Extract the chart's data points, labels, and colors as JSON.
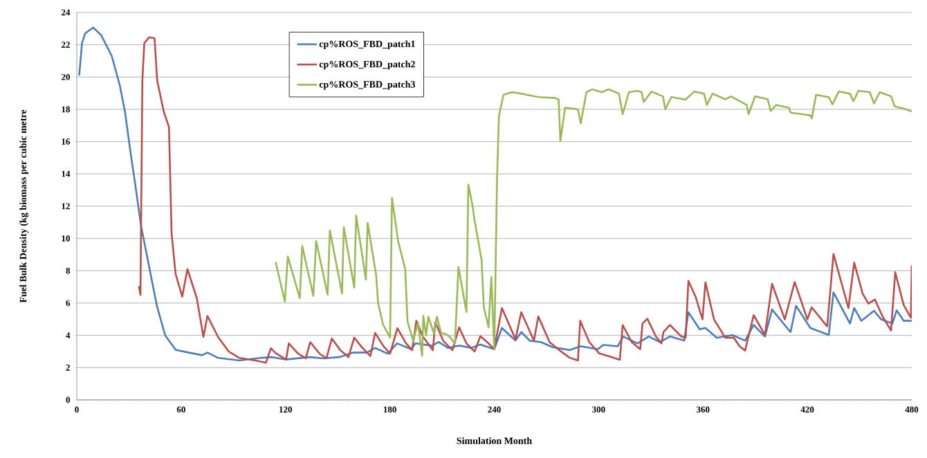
{
  "chart_data": {
    "type": "line",
    "xlabel": "Simulation Month",
    "ylabel": "Fuel Bulk Density (kg biomass per cubic metre",
    "xlim": [
      0,
      480
    ],
    "xticks": [
      0,
      60,
      120,
      180,
      240,
      300,
      360,
      420,
      480
    ],
    "ylim": [
      0,
      24
    ],
    "yticks": [
      0,
      2,
      4,
      6,
      8,
      10,
      12,
      14,
      16,
      18,
      20,
      22,
      24
    ],
    "grid": "y",
    "legend": "top",
    "marker": "none",
    "line_style": "solid",
    "series": [
      {
        "name": "cp%ROS_FBD_patch1",
        "color": "#4a7ebb",
        "x": [
          1.4,
          3,
          4.8,
          9.4,
          14,
          20.1,
          24.7,
          27.7,
          30.8,
          33.8,
          36.9,
          41.5,
          46.1,
          50.8,
          56.9,
          64.4,
          72,
          75.1,
          81.2,
          93.4,
          105.7,
          112.3,
          120.3,
          133.6,
          141.6,
          150.9,
          158.8,
          166.8,
          171.5,
          178.8,
          184.1,
          192.1,
          194.8,
          204.1,
          208.1,
          213.4,
          220,
          226.7,
          232,
          240,
          244.4,
          252.2,
          255.5,
          260.4,
          266.9,
          273.4,
          283.2,
          289.7,
          299.5,
          302.7,
          310.9,
          314.1,
          322.3,
          328.8,
          335.3,
          341,
          349.2,
          351.6,
          358.1,
          361.4,
          367.9,
          376.9,
          384.2,
          389.1,
          395.6,
          399.7,
          410.3,
          413.5,
          421.7,
          432.3,
          435,
          444.5,
          446.9,
          451,
          458.3,
          462.4,
          468.9,
          471.3,
          475.4,
          480
        ],
        "values": [
          20.1,
          22.1,
          22.7,
          23.07,
          22.6,
          21.3,
          19.5,
          17.85,
          15.4,
          13.2,
          10.8,
          8.3,
          5.8,
          4.0,
          3.1,
          2.93,
          2.77,
          2.93,
          2.6,
          2.44,
          2.6,
          2.65,
          2.5,
          2.65,
          2.57,
          2.65,
          2.93,
          2.93,
          3.22,
          2.86,
          3.5,
          3.15,
          3.5,
          3.36,
          3.58,
          3.22,
          3.36,
          3.22,
          3.43,
          3.14,
          4.46,
          3.67,
          4.2,
          3.67,
          3.58,
          3.27,
          3.09,
          3.32,
          3.14,
          3.41,
          3.32,
          3.93,
          3.5,
          3.93,
          3.58,
          3.93,
          3.67,
          5.43,
          4.37,
          4.46,
          3.85,
          4.02,
          3.67,
          4.64,
          3.93,
          5.6,
          4.2,
          5.83,
          4.46,
          4.02,
          6.66,
          4.73,
          5.69,
          4.9,
          5.52,
          4.99,
          4.73,
          5.55,
          4.9,
          4.9
        ]
      },
      {
        "name": "cp%ROS_FBD_patch2",
        "color": "#be4b48",
        "x": [
          35.7,
          36.6,
          37.7,
          38.8,
          41.6,
          44.7,
          46.2,
          50,
          53,
          54.5,
          56.8,
          60.6,
          63.6,
          69,
          72.8,
          75.1,
          81.2,
          87.3,
          93.4,
          102.6,
          108.7,
          111.6,
          114.3,
          120.3,
          121.9,
          126.9,
          131.6,
          134.2,
          139.6,
          143.5,
          146.6,
          151.5,
          156.2,
          159.5,
          164.2,
          168.8,
          171.5,
          176.1,
          180.1,
          184.3,
          189.3,
          192.8,
          195.2,
          198.8,
          204.7,
          206.1,
          210.7,
          216,
          219.8,
          224,
          228.7,
          232,
          236.7,
          240,
          244.4,
          252.2,
          255.5,
          262.8,
          265.3,
          271.8,
          276.7,
          283.2,
          288.1,
          289.4,
          294.6,
          300.3,
          306,
          312.2,
          313.8,
          319,
          323.9,
          325.2,
          328,
          332.9,
          336.1,
          337.3,
          341,
          347.5,
          350,
          351.6,
          355.7,
          359.7,
          361.4,
          366.3,
          372.8,
          377.7,
          381,
          384.2,
          389.1,
          395.6,
          399.7,
          407,
          412.7,
          420,
          422.5,
          431.4,
          435,
          443.6,
          446.9,
          451.8,
          455.1,
          458.8,
          463.2,
          468.1,
          470.5,
          475.4,
          479.5,
          480
        ],
        "values": [
          7.05,
          6.5,
          19.8,
          22.1,
          22.46,
          22.4,
          19.8,
          17.85,
          16.9,
          10.3,
          7.8,
          6.4,
          8.1,
          6.3,
          3.9,
          5.2,
          3.9,
          3.0,
          2.6,
          2.44,
          2.3,
          3.2,
          2.9,
          2.5,
          3.5,
          2.9,
          2.57,
          3.58,
          2.86,
          2.57,
          3.8,
          3.08,
          2.65,
          3.86,
          3.22,
          2.72,
          4.15,
          3.36,
          2.86,
          4.44,
          3.5,
          3.08,
          4.9,
          3.94,
          3.08,
          4.8,
          3.65,
          3.08,
          4.5,
          3.5,
          3.0,
          3.94,
          3.5,
          3.14,
          5.69,
          3.76,
          5.43,
          3.67,
          5.17,
          3.58,
          3.14,
          2.62,
          2.44,
          4.9,
          3.58,
          2.88,
          2.7,
          2.49,
          4.64,
          3.58,
          3.14,
          4.73,
          5.03,
          3.93,
          3.5,
          4.2,
          4.64,
          3.93,
          3.85,
          7.37,
          6.4,
          4.99,
          7.28,
          4.99,
          3.85,
          3.85,
          3.32,
          3.06,
          5.25,
          4.02,
          7.19,
          4.99,
          7.3,
          4.99,
          5.73,
          4.55,
          9.04,
          5.69,
          8.5,
          6.57,
          5.96,
          6.22,
          5.17,
          4.29,
          7.9,
          5.87,
          5.08,
          8.33
        ]
      },
      {
        "name": "cp%ROS_FBD_patch3",
        "color": "#98b954",
        "x": [
          114.3,
          119.6,
          121.3,
          128.2,
          129.6,
          136,
          137.6,
          144.2,
          145.5,
          152.5,
          153.5,
          159.5,
          160.6,
          166.2,
          167.2,
          172.1,
          173.2,
          176.1,
          180.1,
          181.2,
          184.8,
          188.8,
          190.1,
          193.4,
          196.1,
          198.5,
          199.2,
          200.8,
          202.1,
          205.4,
          207,
          209.4,
          212.1,
          214.1,
          217.4,
          219.4,
          224,
          225.1,
          227.4,
          228.7,
          232.7,
          234,
          236.7,
          238.3,
          240,
          241.6,
          242.7,
          245.3,
          250,
          255.5,
          265.3,
          275,
          277,
          278,
          280.7,
          288.1,
          289.7,
          293,
          296.2,
          301.9,
          305.7,
          311.7,
          313.8,
          317.4,
          322.3,
          324.7,
          325.9,
          330.4,
          337,
          338.3,
          341.8,
          350,
          354.9,
          360.6,
          362.2,
          365.5,
          372.8,
          376.1,
          385.1,
          386.2,
          389.9,
          397.2,
          398.9,
          402.1,
          409.4,
          410.3,
          416.8,
          421.7,
          422.5,
          425,
          432.3,
          434.4,
          438,
          444.5,
          446.4,
          449.4,
          455.9,
          458.3,
          461.6,
          468.1,
          470.2,
          475.4,
          480
        ],
        "values": [
          8.55,
          6.09,
          8.88,
          6.3,
          9.53,
          6.44,
          9.84,
          6.52,
          10.5,
          6.59,
          10.7,
          6.95,
          11.42,
          7.45,
          10.96,
          7.73,
          6.0,
          4.65,
          3.86,
          12.5,
          9.8,
          8.1,
          4.87,
          3.65,
          4.8,
          2.72,
          5.2,
          4.0,
          5.15,
          4.08,
          5.15,
          4.15,
          4.08,
          3.94,
          3.5,
          8.24,
          5.44,
          13.33,
          12.1,
          11.1,
          8.67,
          5.73,
          4.5,
          7.6,
          3.15,
          13.8,
          17.6,
          18.9,
          19.06,
          18.97,
          18.76,
          18.7,
          18.6,
          16.04,
          18.1,
          18.0,
          17.13,
          19.06,
          19.24,
          19.06,
          19.24,
          18.97,
          17.7,
          19.06,
          19.15,
          19.06,
          18.45,
          19.1,
          18.8,
          18.0,
          18.76,
          18.6,
          19.1,
          18.97,
          18.27,
          18.97,
          18.62,
          18.8,
          18.27,
          17.7,
          18.8,
          18.62,
          17.9,
          18.27,
          18.1,
          17.8,
          17.7,
          17.62,
          17.43,
          18.9,
          18.75,
          18.3,
          19.1,
          18.97,
          18.5,
          19.15,
          19.06,
          18.36,
          19.06,
          18.8,
          18.18,
          18.04,
          17.87
        ]
      }
    ]
  }
}
